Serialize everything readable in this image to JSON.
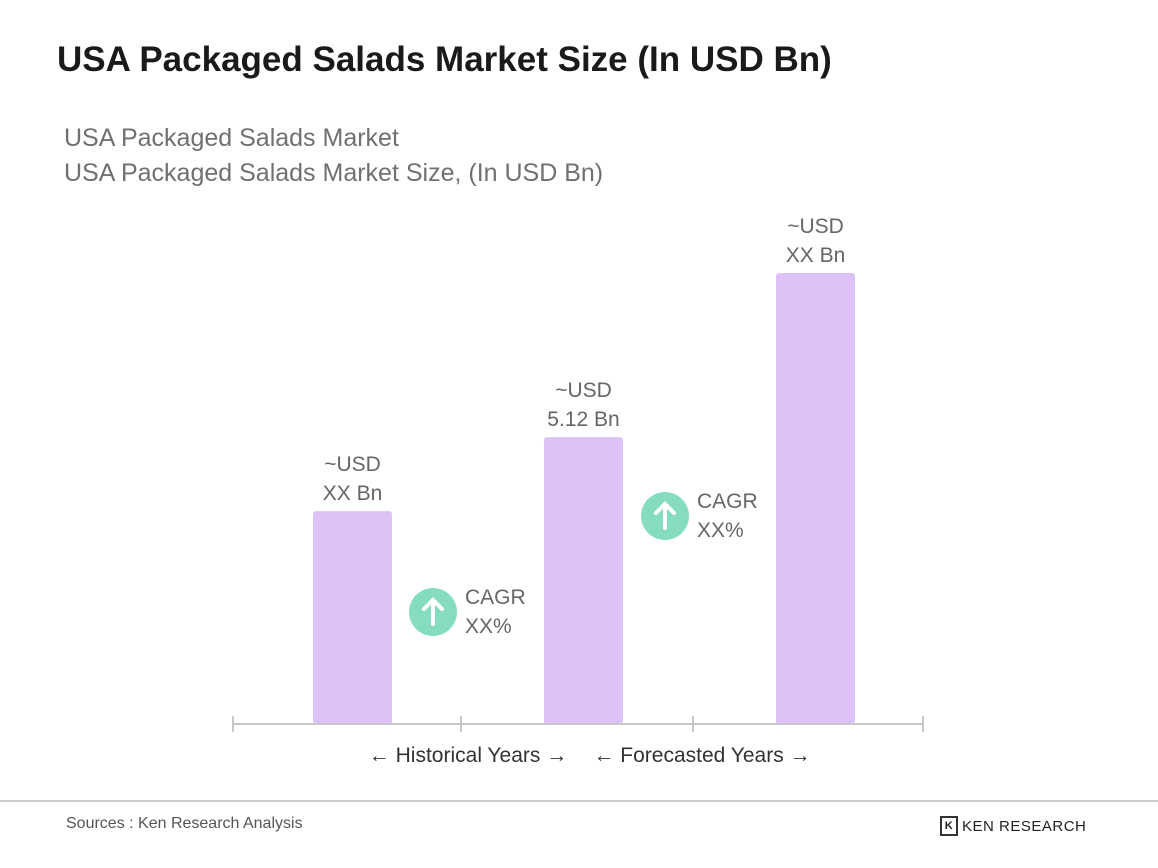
{
  "chart_data": {
    "type": "bar",
    "title": "USA Packaged Salads Market Size (In USD Bn)",
    "subtitle": [
      "USA Packaged Salads Market",
      "USA Packaged Salads Market Size, (In USD Bn)"
    ],
    "categories": [
      "",
      "",
      ""
    ],
    "values": [
      3.8,
      5.12,
      8.05
    ],
    "data_labels": [
      [
        "~USD",
        "XX Bn"
      ],
      [
        "~USD",
        "5.12 Bn"
      ],
      [
        "~USD",
        "XX Bn"
      ]
    ],
    "annotations": [
      {
        "icon": "arrow-up-circle-icon",
        "lines": [
          "CAGR",
          "XX%"
        ]
      },
      {
        "icon": "arrow-up-circle-icon",
        "lines": [
          "CAGR",
          "XX%"
        ]
      }
    ],
    "periods": [
      "Historical Years",
      "Forecasted Years"
    ],
    "ylim": [
      0,
      8.05
    ],
    "grid": false,
    "bar_color": "#dcc2f7",
    "cagr_color": "#86dcc0"
  },
  "footer": {
    "source": "Sources : Ken Research Analysis",
    "brand": "KEN RESEARCH"
  }
}
